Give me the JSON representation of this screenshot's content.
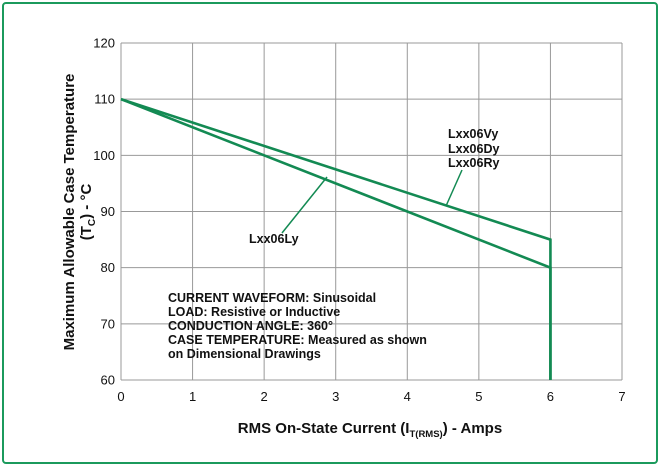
{
  "colors": {
    "frame": "#1b9a5c",
    "series": "#138a53",
    "grid": "#999999",
    "text": "#111111"
  },
  "chart_data": {
    "type": "line",
    "xlabel_parts": [
      "RMS On-State Current (I",
      "T(RMS)",
      ") - Amps"
    ],
    "ylabel_line1": "Maximum Allowable Case Temperature",
    "ylabel_line2_parts": [
      "(T",
      "C",
      ") - °C"
    ],
    "xlim": [
      0,
      7
    ],
    "ylim": [
      60,
      120
    ],
    "x_ticks": [
      0,
      1,
      2,
      3,
      4,
      5,
      6,
      7
    ],
    "y_ticks": [
      60,
      70,
      80,
      90,
      100,
      110,
      120
    ],
    "grid": true,
    "series": [
      {
        "name": "Lxx06Vy / Lxx06Dy / Lxx06Ry",
        "x": [
          0,
          6,
          6
        ],
        "y": [
          110,
          85,
          60
        ]
      },
      {
        "name": "Lxx06Ly",
        "x": [
          0,
          6,
          6
        ],
        "y": [
          110,
          80,
          60
        ]
      }
    ],
    "series_labels": {
      "upper": [
        "Lxx06Vy",
        "Lxx06Dy",
        "Lxx06Ry"
      ],
      "lower": "Lxx06Ly"
    },
    "annotation_lines": [
      "CURRENT WAVEFORM: Sinusoidal",
      "LOAD: Resistive or Inductive",
      "CONDUCTION ANGLE: 360°",
      "CASE TEMPERATURE: Measured as shown",
      "on Dimensional Drawings"
    ]
  }
}
